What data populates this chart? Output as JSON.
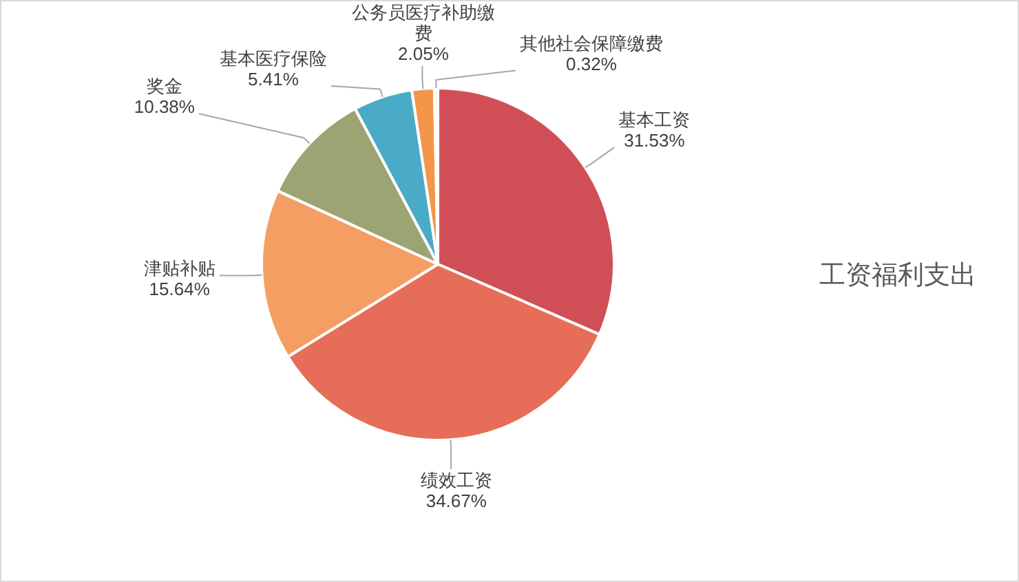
{
  "chart_data": {
    "type": "pie",
    "title": "工资福利支出",
    "categories": [
      "基本工资",
      "绩效工资",
      "津贴补贴",
      "奖金",
      "基本医疗保险",
      "公务员医疗补助缴费",
      "其他社会保障缴费"
    ],
    "values": [
      31.53,
      34.67,
      15.64,
      10.38,
      5.41,
      2.05,
      0.32
    ],
    "colors": [
      "#d04f56",
      "#e66e58",
      "#f59e63",
      "#9ca474",
      "#4aabc6",
      "#f4964a",
      "#efe9dc"
    ],
    "value_labels": [
      "31.53%",
      "34.67%",
      "15.64%",
      "10.38%",
      "5.41%",
      "2.05%",
      "0.32%"
    ]
  }
}
